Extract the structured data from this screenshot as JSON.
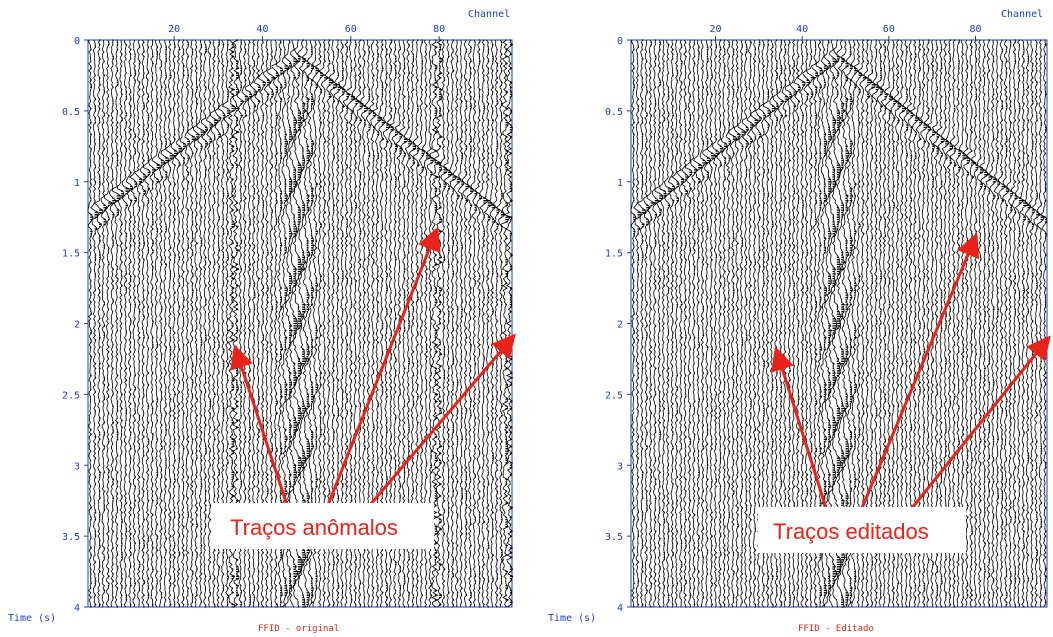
{
  "colors": {
    "axis": "#1a3fbf",
    "trace": "#000000",
    "arrow": "#e8231a",
    "title": "#e0261d",
    "callout_bg": "#ffffff"
  },
  "chart_data": [
    {
      "type": "seismic-wiggle-gather",
      "title": "FFID - original",
      "xlabel": "Channel",
      "ylabel": "Time (s)",
      "x_ticks": [
        20,
        40,
        60,
        80
      ],
      "y_ticks": [
        "0",
        "0.5",
        "1",
        "1.5",
        "2",
        "2.5",
        "3",
        "3.5",
        "4"
      ],
      "xlim": [
        1,
        96
      ],
      "ylim": [
        0,
        4
      ],
      "apex": {
        "channel": 48,
        "time": 0.1
      },
      "anomalous_traces": [
        34,
        80,
        96
      ],
      "callout": "Traços anômalos"
    },
    {
      "type": "seismic-wiggle-gather",
      "title": "FFID - Editado",
      "xlabel": "Channel",
      "ylabel": "Time (s)",
      "x_ticks": [
        20,
        40,
        60,
        80
      ],
      "y_ticks": [
        "0",
        "0.5",
        "1",
        "1.5",
        "2",
        "2.5",
        "3",
        "3.5",
        "4"
      ],
      "xlim": [
        1,
        96
      ],
      "ylim": [
        0,
        4
      ],
      "apex": {
        "channel": 48,
        "time": 0.1
      },
      "anomalous_traces": [
        34,
        80,
        96
      ],
      "callout": "Traços editados"
    }
  ]
}
